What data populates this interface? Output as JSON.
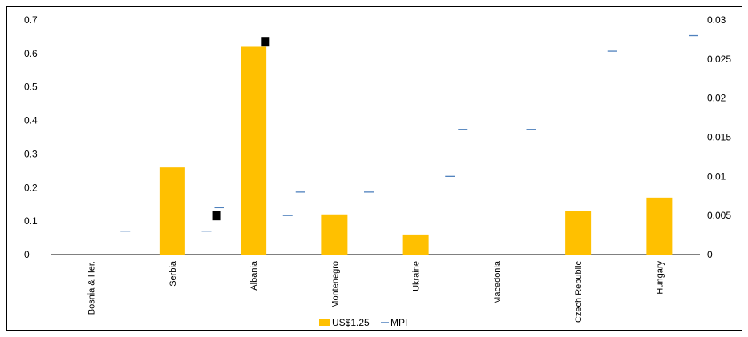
{
  "chart_data": {
    "type": "bar",
    "categories": [
      "Bosnia & Her.",
      "Serbia",
      "Albania",
      "Montenegro",
      "Ukraine",
      "Macedonia",
      "Czech Republic",
      "Hungary"
    ],
    "series": [
      {
        "name": "US$1.25",
        "axis": "left",
        "render": "bar",
        "color": "#FFC000",
        "values": [
          0,
          0.26,
          0.62,
          0.12,
          0.06,
          0,
          0.13,
          0.17
        ]
      },
      {
        "name": "MPI",
        "axis": "right",
        "render": "dash",
        "color": "#4F81BD",
        "values": [
          0.003,
          0.003,
          0.005,
          0.008,
          0.01,
          0.016,
          0.026,
          0.028
        ],
        "values_second": [
          null,
          null,
          0.006,
          0.008,
          null,
          0.016,
          null,
          null
        ]
      }
    ],
    "markers": [
      {
        "category": "Albania",
        "axis": "left",
        "value": 0.635,
        "color": "#000000",
        "offset": 0.15
      },
      {
        "category": "Albania",
        "axis": "right",
        "value": 0.005,
        "color": "#000000",
        "offset": -0.45
      }
    ],
    "left_ticks": [
      "0",
      "0.1",
      "0.2",
      "0.3",
      "0.4",
      "0.5",
      "0.6",
      "0.7"
    ],
    "right_ticks": [
      "0",
      "0.005",
      "0.01",
      "0.015",
      "0.02",
      "0.025",
      "0.03"
    ],
    "ylim_left": [
      0,
      0.7
    ],
    "ylim_right": [
      0,
      0.03
    ],
    "legend": {
      "position": "bottom",
      "items": [
        {
          "label": "US$1.25",
          "color": "#FFC000",
          "shape": "box"
        },
        {
          "label": "MPI",
          "color": "#4F81BD",
          "shape": "line"
        }
      ]
    },
    "grid": false
  }
}
